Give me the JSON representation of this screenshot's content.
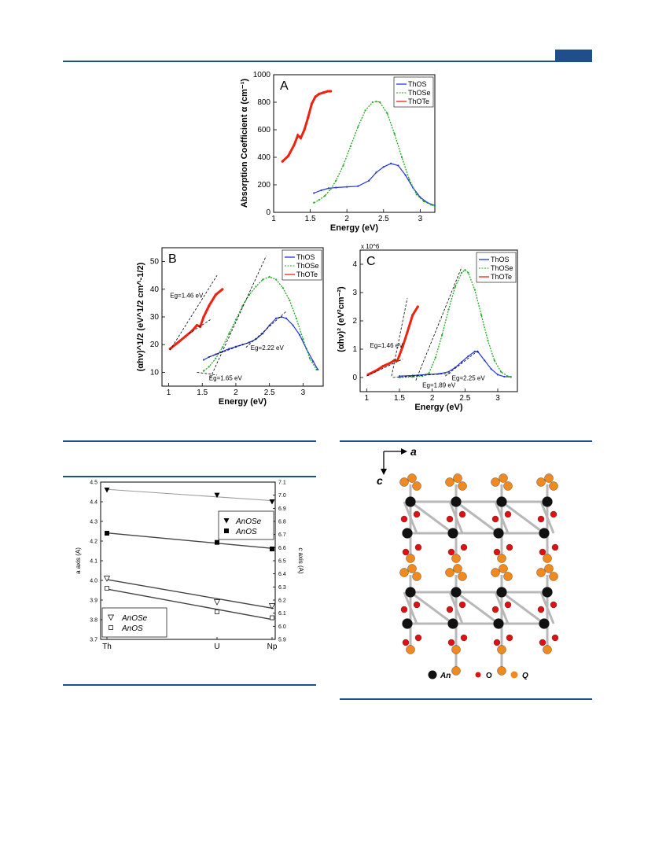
{
  "colors": {
    "header_blue": "#1f4e8c",
    "ThOS": "#2233dd",
    "ThOSe": "#22aa22",
    "ThOTe": "#ee2211",
    "crystal_An": "#111111",
    "crystal_O": "#dd1111",
    "crystal_Q": "#f08a1e"
  },
  "chart_data": [
    {
      "type": "line",
      "panel": "A",
      "xlabel": "Energy (eV)",
      "ylabel": "Absorption Coefficient α (cm⁻¹)",
      "xlim": [
        1,
        3.2
      ],
      "ylim": [
        0,
        1000
      ],
      "xticks": [
        "1",
        "1.5",
        "2",
        "2.5",
        "3"
      ],
      "yticks": [
        "0",
        "200",
        "400",
        "600",
        "800",
        "1000"
      ],
      "legend": [
        "ThOS",
        "ThOSe",
        "ThOTe"
      ],
      "series": [
        {
          "name": "ThOTe",
          "x": [
            1.12,
            1.2,
            1.28,
            1.33,
            1.37,
            1.42,
            1.47,
            1.52,
            1.57,
            1.62,
            1.68,
            1.74,
            1.78
          ],
          "y": [
            370,
            410,
            490,
            560,
            540,
            600,
            690,
            790,
            840,
            860,
            870,
            880,
            880
          ]
        },
        {
          "name": "ThOS",
          "x": [
            1.55,
            1.65,
            1.75,
            1.85,
            2,
            2.15,
            2.3,
            2.4,
            2.5,
            2.6,
            2.7,
            2.8,
            2.9,
            3,
            3.1,
            3.2
          ],
          "y": [
            140,
            160,
            175,
            180,
            185,
            190,
            230,
            290,
            330,
            355,
            340,
            270,
            180,
            110,
            70,
            50
          ]
        },
        {
          "name": "ThOSe",
          "x": [
            1.55,
            1.62,
            1.7,
            1.78,
            1.85,
            1.95,
            2.05,
            2.15,
            2.25,
            2.35,
            2.4,
            2.45,
            2.55,
            2.65,
            2.75,
            2.85,
            2.95,
            3.05,
            3.15,
            3.2
          ],
          "y": [
            70,
            90,
            120,
            170,
            230,
            340,
            480,
            620,
            740,
            800,
            805,
            800,
            720,
            570,
            400,
            240,
            130,
            80,
            55,
            45
          ]
        }
      ]
    },
    {
      "type": "line",
      "panel": "B",
      "xlabel": "Energy (eV)",
      "ylabel": "(αhν)^1/2 (eV^1/2 cm^-1/2)",
      "xlim": [
        0.9,
        3.3
      ],
      "ylim": [
        5,
        55
      ],
      "xticks": [
        "1",
        "1.5",
        "2",
        "2.5",
        "3"
      ],
      "yticks": [
        "10",
        "20",
        "30",
        "40",
        "50"
      ],
      "legend": [
        "ThOS",
        "ThOSe",
        "ThOTe"
      ],
      "annotations": [
        "Eg=1.46 eV",
        "Eg=1.65 eV",
        "Eg=2.22 eV"
      ],
      "series": [
        {
          "name": "ThOTe",
          "x": [
            1.02,
            1.15,
            1.25,
            1.35,
            1.42,
            1.47,
            1.52,
            1.6,
            1.7,
            1.8
          ],
          "y": [
            18.5,
            21,
            23,
            25,
            27,
            26.5,
            30,
            34,
            38,
            40
          ]
        },
        {
          "name": "ThOS",
          "x": [
            1.52,
            1.6,
            1.7,
            1.8,
            1.9,
            2,
            2.1,
            2.2,
            2.3,
            2.4,
            2.5,
            2.6,
            2.68,
            2.75,
            2.85,
            2.95,
            3.05,
            3.15,
            3.22
          ],
          "y": [
            14.5,
            15.5,
            16.5,
            17.5,
            18.5,
            19.3,
            20,
            20.8,
            22,
            24,
            27,
            29.5,
            30,
            29.5,
            27,
            23.5,
            18.5,
            14,
            11
          ]
        },
        {
          "name": "ThOSe",
          "x": [
            1.52,
            1.6,
            1.7,
            1.8,
            1.9,
            2,
            2.1,
            2.2,
            2.3,
            2.4,
            2.5,
            2.6,
            2.7,
            2.8,
            2.9,
            3,
            3.1,
            3.2
          ],
          "y": [
            10.5,
            12,
            15,
            19,
            24,
            29,
            34,
            38,
            41,
            43.5,
            44.5,
            43.5,
            40.5,
            36,
            29.5,
            22,
            15,
            11
          ]
        }
      ]
    },
    {
      "type": "line",
      "panel": "C",
      "xlabel": "Energy (eV)",
      "ylabel": "(αhν)² (eV²cm⁻²)",
      "yexp": "x 10^6",
      "xlim": [
        0.9,
        3.3
      ],
      "ylim": [
        -0.5,
        4.5
      ],
      "xticks": [
        "1",
        "1.5",
        "2",
        "2.5",
        "3"
      ],
      "yticks": [
        "0",
        "1",
        "2",
        "3",
        "4"
      ],
      "legend": [
        "ThOS",
        "ThOSe",
        "ThOTe"
      ],
      "annotations": [
        "Eg=1.46 eV",
        "Eg=1.89 eV",
        "Eg=2.25 eV"
      ],
      "series": [
        {
          "name": "ThOTe",
          "x": [
            1.02,
            1.15,
            1.25,
            1.35,
            1.42,
            1.47,
            1.55,
            1.62,
            1.7,
            1.78
          ],
          "y": [
            0.1,
            0.25,
            0.4,
            0.5,
            0.6,
            0.6,
            1.1,
            1.6,
            2.2,
            2.5
          ]
        },
        {
          "name": "ThOS",
          "x": [
            1.5,
            1.7,
            1.9,
            2.1,
            2.25,
            2.35,
            2.45,
            2.55,
            2.65,
            2.7,
            2.8,
            2.9,
            3,
            3.1,
            3.2
          ],
          "y": [
            0.05,
            0.07,
            0.1,
            0.13,
            0.2,
            0.35,
            0.55,
            0.75,
            0.92,
            0.9,
            0.6,
            0.3,
            0.1,
            0.03,
            0.02
          ]
        },
        {
          "name": "ThOSe",
          "x": [
            1.5,
            1.7,
            1.85,
            1.95,
            2.05,
            2.15,
            2.25,
            2.35,
            2.45,
            2.5,
            2.55,
            2.65,
            2.75,
            2.85,
            2.95,
            3.05,
            3.15,
            3.2
          ],
          "y": [
            0,
            0.02,
            0.05,
            0.15,
            0.7,
            1.5,
            2.4,
            3.2,
            3.7,
            3.8,
            3.7,
            3.1,
            2.2,
            1.3,
            0.6,
            0.2,
            0.05,
            0.02
          ]
        }
      ]
    },
    {
      "type": "scatter",
      "panel": "lattice",
      "xlabel": "",
      "ylabel": "a axis (A)",
      "y2label": "c axis (A)",
      "categories": [
        "Th",
        "U",
        "Np"
      ],
      "ylim": [
        3.7,
        4.5
      ],
      "y2lim": [
        5.9,
        7.1
      ],
      "yticks": [
        "3.7",
        "3.8",
        "3.9",
        "4.0",
        "4.1",
        "4.2",
        "4.3",
        "4.4",
        "4.5"
      ],
      "y2ticks": [
        "5.9",
        "6.0",
        "6.1",
        "6.2",
        "6.3",
        "6.4",
        "6.5",
        "6.6",
        "6.7",
        "6.8",
        "6.9",
        "7.0",
        "7.1"
      ],
      "legend_filled": [
        "AnOSe",
        "AnOS"
      ],
      "legend_open": [
        "AnOSe",
        "AnOS"
      ],
      "series": [
        {
          "name": "AnOSe",
          "axis": "c",
          "marker": "filled-triangle",
          "values": [
            7.04,
            7.0,
            6.95
          ]
        },
        {
          "name": "AnOS",
          "axis": "c",
          "marker": "filled-square",
          "values": [
            6.71,
            6.64,
            6.59
          ]
        },
        {
          "name": "AnOSe",
          "axis": "a",
          "marker": "open-triangle",
          "values": [
            4.01,
            3.89,
            3.87
          ]
        },
        {
          "name": "AnOS",
          "axis": "a",
          "marker": "open-square",
          "values": [
            3.96,
            3.84,
            3.81
          ]
        }
      ]
    }
  ],
  "crystal": {
    "axis_a": "a",
    "axis_c": "c",
    "legend": [
      "An",
      "O",
      "Q"
    ]
  }
}
